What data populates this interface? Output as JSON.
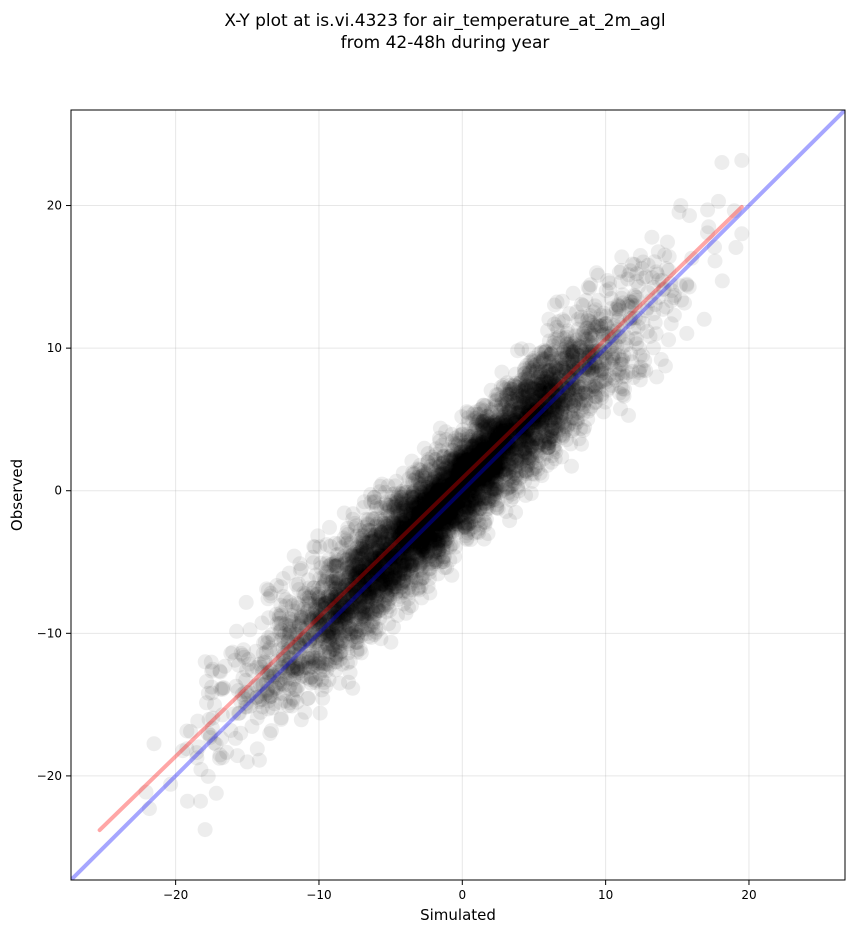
{
  "chart_data": {
    "type": "scatter",
    "title": "X-Y plot at is.vi.4323 for air_temperature_at_2m_agl",
    "subtitle": "from 42-48h during year",
    "xlabel": "Simulated",
    "ylabel": "Observed",
    "xlim": [
      -27.3,
      26.7
    ],
    "ylim": [
      -27.3,
      26.7
    ],
    "x_ticks": [
      -20,
      -10,
      0,
      10,
      20
    ],
    "y_ticks": [
      -20,
      -10,
      0,
      10,
      20
    ],
    "x_tick_labels": [
      "−20",
      "−10",
      "0",
      "10",
      "20"
    ],
    "y_tick_labels": [
      "−20",
      "−10",
      "0",
      "10",
      "20"
    ],
    "grid": true,
    "scatter": {
      "color": "#000000",
      "opacity": 0.07,
      "point_count": 6000,
      "x_range": [
        -25.5,
        19.5
      ],
      "mode_center": [
        -1,
        -1.5
      ],
      "approx_relation": "observed ≈ 1.0 × simulated + 0.4 (residual spread ≈ 2.3)"
    },
    "reference_lines": [
      {
        "kind": "one-to-one",
        "color": "#0000ff",
        "opacity": 0.35,
        "x": [
          -27.3,
          26.7
        ],
        "y": [
          -27.3,
          26.7
        ]
      },
      {
        "kind": "regression-fit",
        "color": "#ff0000",
        "opacity": 0.35,
        "x": [
          -25.3,
          19.5
        ],
        "y": [
          -23.8,
          19.9
        ]
      }
    ]
  }
}
